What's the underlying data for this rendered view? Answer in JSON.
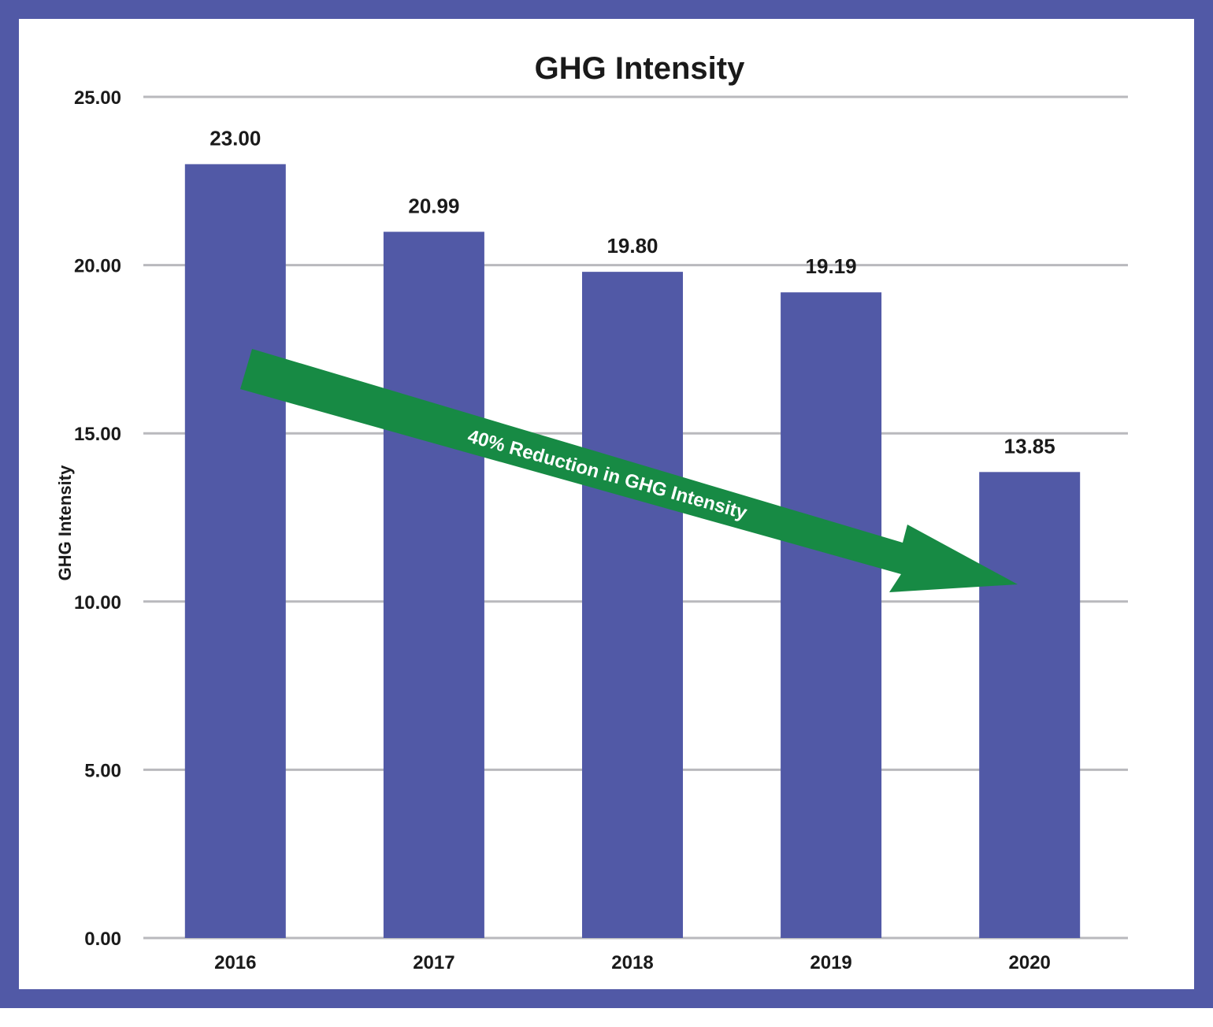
{
  "frame_color": "#5159a6",
  "chart_data": {
    "type": "bar",
    "title": "GHG Intensity",
    "xlabel": "",
    "ylabel": "GHG Intensity",
    "categories": [
      "2016",
      "2017",
      "2018",
      "2019",
      "2020"
    ],
    "values": [
      23.0,
      20.99,
      19.8,
      19.19,
      13.85
    ],
    "data_labels": [
      "23.00",
      "20.99",
      "19.80",
      "19.19",
      "13.85"
    ],
    "ylim": [
      0,
      25
    ],
    "yticks": [
      0,
      5,
      10,
      15,
      20,
      25
    ],
    "ytick_labels": [
      "0.00",
      "5.00",
      "10.00",
      "15.00",
      "20.00",
      "25.00"
    ],
    "grid": true,
    "bar_color": "#5159a6",
    "annotation": {
      "text": "40% Reduction in GHG Intensity",
      "color": "#178a44",
      "from_category": "2016",
      "to_category": "2020"
    }
  }
}
